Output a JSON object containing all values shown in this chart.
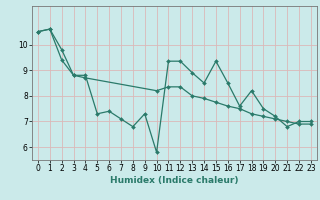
{
  "title": "",
  "xlabel": "Humidex (Indice chaleur)",
  "background_color": "#cbeaea",
  "grid_color": "#dbb8b8",
  "line_color": "#2a7a6a",
  "xlim": [
    -0.5,
    23.5
  ],
  "ylim": [
    5.5,
    11.5
  ],
  "yticks": [
    6,
    7,
    8,
    9,
    10
  ],
  "xticks": [
    0,
    1,
    2,
    3,
    4,
    5,
    6,
    7,
    8,
    9,
    10,
    11,
    12,
    13,
    14,
    15,
    16,
    17,
    18,
    19,
    20,
    21,
    22,
    23
  ],
  "series1_x": [
    0,
    1,
    2,
    3,
    4,
    5,
    6,
    7,
    8,
    9,
    10,
    11,
    12,
    13,
    14,
    15,
    16,
    17,
    18,
    19,
    20,
    21,
    22,
    23
  ],
  "series1_y": [
    10.5,
    10.6,
    9.8,
    8.8,
    8.8,
    7.3,
    7.4,
    7.1,
    6.8,
    7.3,
    5.8,
    9.35,
    9.35,
    8.9,
    8.5,
    9.35,
    8.5,
    7.6,
    8.2,
    7.5,
    7.2,
    6.8,
    7.0,
    7.0
  ],
  "series2_x": [
    0,
    1,
    2,
    3,
    4,
    10,
    11,
    12,
    13,
    14,
    15,
    16,
    17,
    18,
    19,
    20,
    21,
    22,
    23
  ],
  "series2_y": [
    10.5,
    10.6,
    9.4,
    8.8,
    8.7,
    8.2,
    8.35,
    8.35,
    8.0,
    7.9,
    7.75,
    7.6,
    7.5,
    7.3,
    7.2,
    7.1,
    7.0,
    6.9,
    6.9
  ],
  "tick_fontsize": 5.5,
  "xlabel_fontsize": 6.5
}
